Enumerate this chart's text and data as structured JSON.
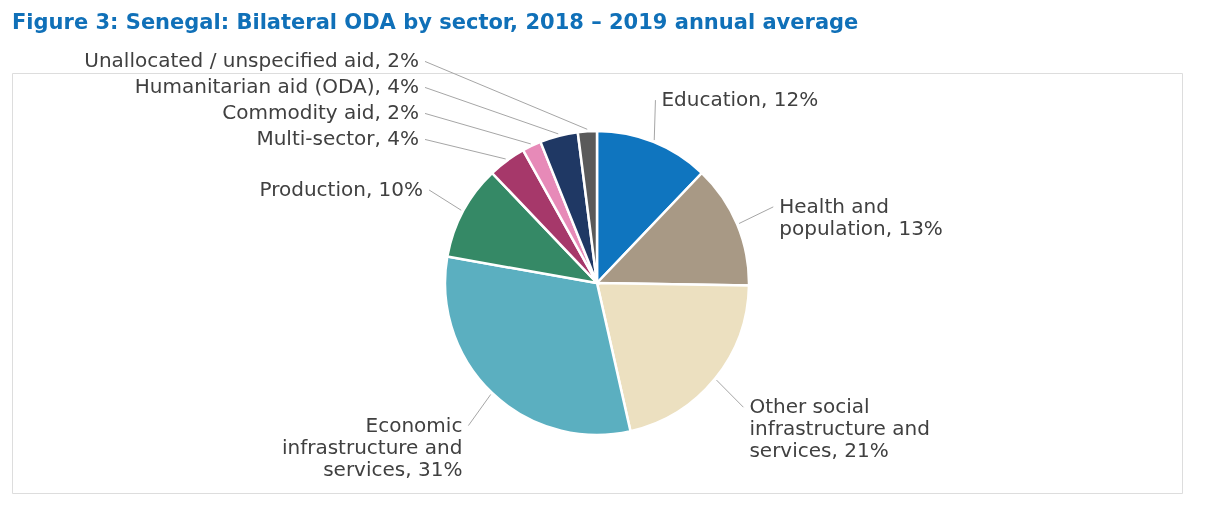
{
  "chart_data": {
    "type": "pie",
    "title": "Figure 3: Senegal: Bilateral ODA by sector, 2018 – 2019 annual average",
    "categories": [
      "Education",
      "Health and population",
      "Other social infrastructure and services",
      "Economic infrastructure and services",
      "Production",
      "Multi-sector",
      "Commodity aid",
      "Humanitarian aid (ODA)",
      "Unallocated / unspecified aid"
    ],
    "values": [
      12,
      13,
      21,
      31,
      10,
      4,
      2,
      4,
      2
    ],
    "value_labels": [
      "12%",
      "13%",
      "21%",
      "31%",
      "10%",
      "4%",
      "2%",
      "4%",
      "2%"
    ],
    "colors": [
      "#0f75bf",
      "#a89985",
      "#ece0c0",
      "#5bafc0",
      "#358966",
      "#a6386a",
      "#e78ab8",
      "#1f3864",
      "#5a5a5a"
    ],
    "legend": false
  }
}
